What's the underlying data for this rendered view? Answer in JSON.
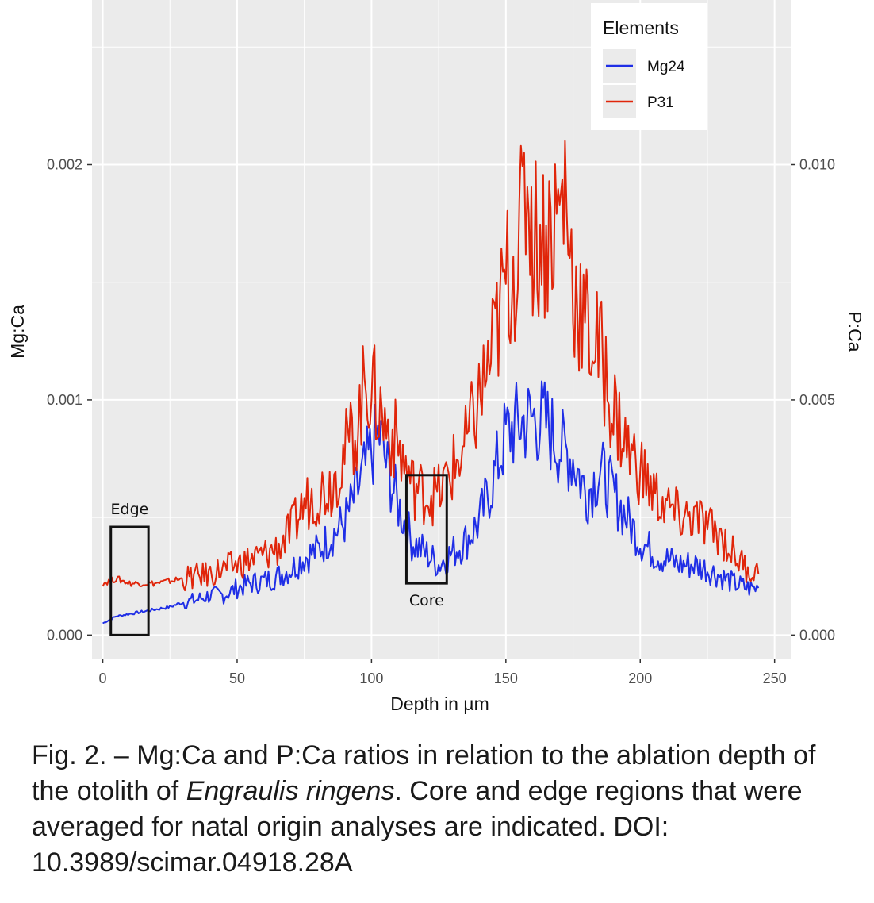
{
  "chart_data": {
    "type": "line",
    "xlabel": "Depth in µm",
    "ylabel_left": "Mg:Ca",
    "ylabel_right": "P:Ca",
    "xlim": [
      -4,
      256
    ],
    "ylim_left": [
      -0.0001,
      0.0027
    ],
    "ylim_right": [
      -0.0005,
      0.0135
    ],
    "x_ticks": [
      0,
      50,
      100,
      150,
      200,
      250
    ],
    "x_tick_labels": [
      "0",
      "50",
      "100",
      "150",
      "200",
      "250"
    ],
    "y_left_ticks": [
      0.0,
      0.001,
      0.002
    ],
    "y_left_tick_labels": [
      "0.000",
      "0.001",
      "0.002"
    ],
    "y_right_ticks": [
      0.0,
      0.005,
      0.01
    ],
    "y_right_tick_labels": [
      "0.000",
      "0.005",
      "0.010"
    ],
    "grid": true,
    "legend": {
      "title": "Elements",
      "position": "top-right"
    },
    "series": [
      {
        "name": "Mg24",
        "axis": "left",
        "color": "#1f2ee6",
        "points": [
          [
            0,
            5e-05
          ],
          [
            5,
            8e-05
          ],
          [
            10,
            9e-05
          ],
          [
            15,
            0.0001
          ],
          [
            20,
            0.00011
          ],
          [
            25,
            0.00012
          ],
          [
            30,
            0.00014
          ],
          [
            35,
            0.00015
          ],
          [
            40,
            0.00017
          ],
          [
            45,
            0.00017
          ],
          [
            50,
            0.0002
          ],
          [
            55,
            0.00022
          ],
          [
            60,
            0.00023
          ],
          [
            65,
            0.00025
          ],
          [
            70,
            0.00028
          ],
          [
            75,
            0.00033
          ],
          [
            80,
            0.00036
          ],
          [
            85,
            0.00042
          ],
          [
            90,
            0.00048
          ],
          [
            95,
            0.00062
          ],
          [
            100,
            0.00078
          ],
          [
            103,
            0.00085
          ],
          [
            106,
            0.0007
          ],
          [
            110,
            0.00055
          ],
          [
            115,
            0.0004
          ],
          [
            120,
            0.00035
          ],
          [
            125,
            0.0003
          ],
          [
            130,
            0.00035
          ],
          [
            135,
            0.0004
          ],
          [
            140,
            0.00048
          ],
          [
            145,
            0.00065
          ],
          [
            150,
            0.00085
          ],
          [
            155,
            0.0009
          ],
          [
            160,
            0.00092
          ],
          [
            165,
            0.0009
          ],
          [
            170,
            0.0008
          ],
          [
            175,
            0.00075
          ],
          [
            180,
            0.0006
          ],
          [
            185,
            0.0007
          ],
          [
            190,
            0.0006
          ],
          [
            195,
            0.0005
          ],
          [
            200,
            0.0004
          ],
          [
            205,
            0.00035
          ],
          [
            210,
            0.00032
          ],
          [
            215,
            0.0003
          ],
          [
            220,
            0.0003
          ],
          [
            225,
            0.00028
          ],
          [
            230,
            0.00025
          ],
          [
            235,
            0.00022
          ],
          [
            240,
            0.0002
          ],
          [
            244,
            0.0002
          ]
        ]
      },
      {
        "name": "P31",
        "axis": "right",
        "color": "#e0250a",
        "points": [
          [
            0,
            0.0011
          ],
          [
            5,
            0.0012
          ],
          [
            10,
            0.0011
          ],
          [
            15,
            0.0011
          ],
          [
            20,
            0.0011
          ],
          [
            25,
            0.00115
          ],
          [
            30,
            0.0012
          ],
          [
            35,
            0.00125
          ],
          [
            40,
            0.0013
          ],
          [
            45,
            0.0014
          ],
          [
            50,
            0.0015
          ],
          [
            55,
            0.0016
          ],
          [
            60,
            0.0017
          ],
          [
            65,
            0.00185
          ],
          [
            70,
            0.0022
          ],
          [
            75,
            0.0028
          ],
          [
            80,
            0.003
          ],
          [
            85,
            0.0032
          ],
          [
            90,
            0.0039
          ],
          [
            95,
            0.0045
          ],
          [
            98,
            0.0055
          ],
          [
            100,
            0.0052
          ],
          [
            105,
            0.0045
          ],
          [
            110,
            0.004
          ],
          [
            115,
            0.0032
          ],
          [
            120,
            0.003
          ],
          [
            125,
            0.003
          ],
          [
            130,
            0.0035
          ],
          [
            135,
            0.004
          ],
          [
            140,
            0.005
          ],
          [
            145,
            0.006
          ],
          [
            150,
            0.0075
          ],
          [
            155,
            0.0082
          ],
          [
            158,
            0.0098
          ],
          [
            160,
            0.0085
          ],
          [
            165,
            0.0085
          ],
          [
            170,
            0.009
          ],
          [
            172,
            0.0095
          ],
          [
            175,
            0.0075
          ],
          [
            180,
            0.0065
          ],
          [
            185,
            0.006
          ],
          [
            190,
            0.0048
          ],
          [
            195,
            0.004
          ],
          [
            200,
            0.0035
          ],
          [
            205,
            0.003
          ],
          [
            210,
            0.0027
          ],
          [
            215,
            0.0025
          ],
          [
            220,
            0.0025
          ],
          [
            225,
            0.0023
          ],
          [
            230,
            0.0021
          ],
          [
            235,
            0.0017
          ],
          [
            240,
            0.0014
          ],
          [
            244,
            0.0013
          ]
        ]
      }
    ],
    "annotations": [
      {
        "label": "Edge",
        "x": [
          3,
          17
        ],
        "y_left": [
          0.0,
          0.00046
        ],
        "label_position": "above"
      },
      {
        "label": "Core",
        "x": [
          113,
          128
        ],
        "y_left": [
          0.00022,
          0.00068
        ],
        "label_position": "below"
      }
    ]
  },
  "caption": {
    "prefix": "Fig. 2. – Mg:Ca and P:Ca ratios in relation to the ablation depth of the otolith of ",
    "species": "Engraulis ringens",
    "suffix": ". Core and edge regions that were averaged for natal origin analyses are indicated. DOI: 10.3989/scimar.04918.28A"
  }
}
